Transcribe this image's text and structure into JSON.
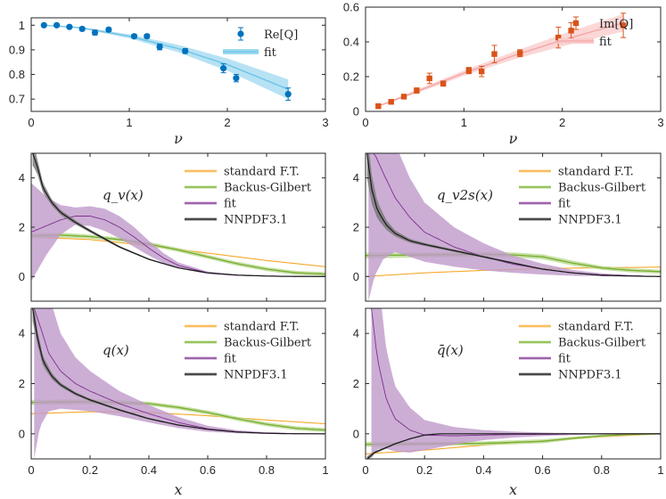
{
  "chart_data": [
    {
      "id": "re",
      "type": "scatter",
      "title": "",
      "xlabel": "ν",
      "ylabel": "",
      "xlim": [
        0,
        3
      ],
      "ylim": [
        0.65,
        1.03
      ],
      "xticks": [
        "0",
        "1",
        "2",
        "3"
      ],
      "yticks": [
        "0.7",
        "0.8",
        "0.9",
        "1"
      ],
      "legend": [
        "Re[Q]",
        "fit"
      ],
      "colors": {
        "data": "#0072BD",
        "fit": "#6CC4E8",
        "band": "#9FD8F0"
      },
      "series": [
        {
          "name": "Re[Q]",
          "x": [
            0.13,
            0.26,
            0.39,
            0.52,
            0.65,
            0.79,
            1.05,
            1.18,
            1.31,
            1.57,
            1.96,
            2.09,
            2.62
          ],
          "y": [
            1.0,
            1.0,
            0.993,
            0.985,
            0.97,
            0.982,
            0.955,
            0.955,
            0.912,
            0.895,
            0.825,
            0.785,
            0.72
          ],
          "err": [
            0.005,
            0.005,
            0.006,
            0.007,
            0.01,
            0.008,
            0.008,
            0.008,
            0.012,
            0.01,
            0.018,
            0.015,
            0.025
          ]
        },
        {
          "name": "fit",
          "x": [
            0.13,
            0.5,
            1.0,
            1.5,
            2.0,
            2.62
          ],
          "y": [
            1.0,
            0.99,
            0.955,
            0.905,
            0.84,
            0.74
          ],
          "band": [
            0.0,
            0.003,
            0.008,
            0.015,
            0.025,
            0.04
          ]
        }
      ]
    },
    {
      "id": "im",
      "type": "scatter",
      "title": "",
      "xlabel": "ν",
      "ylabel": "",
      "xlim": [
        0,
        3
      ],
      "ylim": [
        0,
        0.6
      ],
      "xticks": [
        "0",
        "1",
        "2",
        "3"
      ],
      "yticks": [
        "0",
        "0.2",
        "0.4",
        "0.6"
      ],
      "legend": [
        "Im[Q]",
        "fit"
      ],
      "colors": {
        "data": "#D95319",
        "fit": "#F4A6A6",
        "band": "#F9CACA"
      },
      "series": [
        {
          "name": "Im[Q]",
          "x": [
            0.13,
            0.26,
            0.39,
            0.52,
            0.65,
            0.79,
            1.05,
            1.18,
            1.31,
            1.57,
            1.96,
            2.09,
            2.62
          ],
          "y": [
            0.03,
            0.055,
            0.085,
            0.12,
            0.19,
            0.16,
            0.235,
            0.23,
            0.33,
            0.335,
            0.425,
            0.465,
            0.495
          ],
          "err": [
            0.008,
            0.01,
            0.012,
            0.015,
            0.03,
            0.015,
            0.018,
            0.03,
            0.05,
            0.02,
            0.06,
            0.045,
            0.07
          ]
        },
        {
          "name": "fit",
          "x": [
            0.13,
            0.5,
            1.0,
            1.5,
            2.0,
            2.62
          ],
          "y": [
            0.03,
            0.11,
            0.22,
            0.32,
            0.41,
            0.51
          ],
          "band": [
            0.004,
            0.01,
            0.015,
            0.022,
            0.035,
            0.05
          ]
        }
      ]
    },
    {
      "id": "qv",
      "type": "line",
      "title": "q_v(x)",
      "xlabel": "",
      "ylabel": "",
      "xlim": [
        0,
        1
      ],
      "ylim": [
        -1,
        5
      ],
      "xticks": [],
      "yticks": [
        "0",
        "2",
        "4"
      ],
      "legend": [
        "standard F.T.",
        "Backus-Gilbert",
        "fit",
        "NNPDF3.1"
      ],
      "series": [
        {
          "name": "standard F.T.",
          "x": [
            0,
            0.2,
            0.4,
            0.6,
            0.8,
            1
          ],
          "y": [
            1.6,
            1.5,
            1.25,
            0.95,
            0.65,
            0.4
          ],
          "band": [
            0.02,
            0.02,
            0.02,
            0.02,
            0.02,
            0.02
          ]
        },
        {
          "name": "Backus-Gilbert",
          "x": [
            0,
            0.1,
            0.2,
            0.3,
            0.4,
            0.5,
            0.6,
            0.7,
            0.8,
            0.9,
            1
          ],
          "y": [
            1.65,
            1.68,
            1.62,
            1.5,
            1.32,
            1.08,
            0.8,
            0.52,
            0.3,
            0.15,
            0.1
          ],
          "band": [
            0.1,
            0.1,
            0.08,
            0.08,
            0.08,
            0.08,
            0.08,
            0.08,
            0.08,
            0.08,
            0.08
          ]
        },
        {
          "name": "fit",
          "x": [
            0,
            0.05,
            0.1,
            0.15,
            0.2,
            0.25,
            0.3,
            0.35,
            0.4,
            0.45,
            0.5,
            0.6,
            0.7,
            0.8,
            0.9,
            1
          ],
          "y": [
            1.8,
            2.05,
            2.3,
            2.45,
            2.45,
            2.3,
            2.0,
            1.6,
            1.15,
            0.75,
            0.45,
            0.15,
            0.05,
            0.02,
            0.01,
            0.0
          ],
          "band": [
            2.0,
            1.2,
            0.6,
            0.35,
            0.4,
            0.45,
            0.45,
            0.4,
            0.3,
            0.2,
            0.12,
            0.05,
            0.02,
            0.01,
            0.01,
            0.0
          ]
        },
        {
          "name": "NNPDF3.1",
          "x": [
            0.005,
            0.02,
            0.04,
            0.07,
            0.1,
            0.15,
            0.2,
            0.3,
            0.4,
            0.5,
            0.6,
            0.7,
            0.8,
            0.9,
            1
          ],
          "y": [
            5.0,
            4.5,
            3.6,
            3.0,
            2.6,
            2.2,
            1.85,
            1.2,
            0.7,
            0.35,
            0.15,
            0.06,
            0.02,
            0.0,
            0.0
          ],
          "band": [
            0.5,
            0.3,
            0.2,
            0.12,
            0.1,
            0.08,
            0.06,
            0.04,
            0.03,
            0.02,
            0.01,
            0.01,
            0.0,
            0.0,
            0.0
          ]
        }
      ]
    },
    {
      "id": "qv2s",
      "type": "line",
      "title": "q_v2s(x)",
      "xlabel": "",
      "ylabel": "",
      "xlim": [
        0,
        1
      ],
      "ylim": [
        -1,
        5
      ],
      "xticks": [],
      "yticks": [
        "0",
        "2",
        "4"
      ],
      "legend": [
        "standard F.T.",
        "Backus-Gilbert",
        "fit",
        "NNPDF3.1"
      ],
      "series": [
        {
          "name": "standard F.T.",
          "x": [
            0,
            0.2,
            0.4,
            0.6,
            0.8,
            1
          ],
          "y": [
            0.0,
            0.15,
            0.25,
            0.32,
            0.36,
            0.38
          ],
          "band": [
            0.02,
            0.02,
            0.02,
            0.02,
            0.02,
            0.02
          ]
        },
        {
          "name": "Backus-Gilbert",
          "x": [
            0,
            0.2,
            0.4,
            0.5,
            0.6,
            0.7,
            0.8,
            0.9,
            1
          ],
          "y": [
            0.85,
            0.88,
            0.9,
            0.88,
            0.8,
            0.55,
            0.35,
            0.25,
            0.2
          ],
          "band": [
            0.12,
            0.1,
            0.1,
            0.1,
            0.1,
            0.1,
            0.08,
            0.08,
            0.08
          ]
        },
        {
          "name": "fit",
          "x": [
            0.01,
            0.03,
            0.06,
            0.1,
            0.15,
            0.2,
            0.3,
            0.4,
            0.5,
            0.6,
            0.7,
            0.8,
            0.9,
            1
          ],
          "y": [
            5.0,
            5.0,
            4.2,
            3.2,
            2.4,
            1.8,
            1.2,
            0.8,
            0.5,
            0.3,
            0.15,
            0.07,
            0.03,
            0.0
          ],
          "band": [
            6.0,
            5.0,
            3.5,
            2.2,
            1.6,
            1.2,
            0.8,
            0.55,
            0.35,
            0.22,
            0.12,
            0.06,
            0.03,
            0.0
          ]
        },
        {
          "name": "NNPDF3.1",
          "x": [
            0.005,
            0.02,
            0.04,
            0.07,
            0.1,
            0.15,
            0.2,
            0.3,
            0.4,
            0.5,
            0.6,
            0.7,
            0.8,
            0.9,
            1
          ],
          "y": [
            5.0,
            3.6,
            2.7,
            2.1,
            1.75,
            1.45,
            1.3,
            1.05,
            0.8,
            0.55,
            0.3,
            0.15,
            0.05,
            0.02,
            0.0
          ],
          "band": [
            1.0,
            0.6,
            0.35,
            0.2,
            0.12,
            0.08,
            0.06,
            0.05,
            0.04,
            0.03,
            0.02,
            0.01,
            0.0,
            0.0,
            0.0
          ]
        }
      ]
    },
    {
      "id": "q",
      "type": "line",
      "title": "q(x)",
      "xlabel": "x",
      "ylabel": "",
      "xlim": [
        0,
        1
      ],
      "ylim": [
        -1,
        5
      ],
      "xticks": [
        "0",
        "0.2",
        "0.4",
        "0.6",
        "0.8",
        "1"
      ],
      "yticks": [
        "0",
        "2",
        "4"
      ],
      "legend": [
        "standard F.T.",
        "Backus-Gilbert",
        "fit",
        "NNPDF3.1"
      ],
      "series": [
        {
          "name": "standard F.T.",
          "x": [
            0,
            0.2,
            0.4,
            0.6,
            0.8,
            1
          ],
          "y": [
            0.8,
            0.88,
            0.85,
            0.72,
            0.55,
            0.4
          ],
          "band": [
            0.02,
            0.02,
            0.02,
            0.02,
            0.02,
            0.02
          ]
        },
        {
          "name": "Backus-Gilbert",
          "x": [
            0,
            0.2,
            0.4,
            0.5,
            0.6,
            0.7,
            0.8,
            0.9,
            1
          ],
          "y": [
            1.25,
            1.28,
            1.2,
            1.05,
            0.85,
            0.6,
            0.38,
            0.22,
            0.15
          ],
          "band": [
            0.1,
            0.1,
            0.08,
            0.08,
            0.08,
            0.08,
            0.08,
            0.08,
            0.08
          ]
        },
        {
          "name": "fit",
          "x": [
            0.01,
            0.03,
            0.06,
            0.1,
            0.15,
            0.2,
            0.3,
            0.4,
            0.5,
            0.6,
            0.7,
            0.8,
            0.9,
            1
          ],
          "y": [
            5.0,
            4.3,
            3.2,
            2.5,
            2.0,
            1.7,
            1.2,
            0.8,
            0.45,
            0.2,
            0.08,
            0.03,
            0.01,
            0.0
          ],
          "band": [
            6.0,
            4.0,
            2.3,
            1.5,
            1.05,
            0.8,
            0.5,
            0.35,
            0.22,
            0.12,
            0.06,
            0.03,
            0.01,
            0.0
          ]
        },
        {
          "name": "NNPDF3.1",
          "x": [
            0.005,
            0.02,
            0.04,
            0.07,
            0.1,
            0.15,
            0.2,
            0.3,
            0.4,
            0.5,
            0.6,
            0.7,
            0.8,
            0.9,
            1
          ],
          "y": [
            5.0,
            3.9,
            2.9,
            2.3,
            1.95,
            1.6,
            1.35,
            0.95,
            0.6,
            0.35,
            0.18,
            0.07,
            0.02,
            0.0,
            0.0
          ],
          "band": [
            0.5,
            0.3,
            0.2,
            0.12,
            0.08,
            0.06,
            0.05,
            0.04,
            0.03,
            0.02,
            0.01,
            0.01,
            0.0,
            0.0,
            0.0
          ]
        }
      ]
    },
    {
      "id": "qbar",
      "type": "line",
      "title": "q̄(x)",
      "xlabel": "x",
      "ylabel": "",
      "xlim": [
        0,
        1
      ],
      "ylim": [
        -1,
        5
      ],
      "xticks": [
        "0",
        "0.2",
        "0.4",
        "0.6",
        "0.8",
        "1"
      ],
      "yticks": [
        "0",
        "2",
        "4"
      ],
      "legend": [
        "standard F.T.",
        "Backus-Gilbert",
        "fit",
        "NNPDF3.1"
      ],
      "series": [
        {
          "name": "standard F.T.",
          "x": [
            0,
            0.2,
            0.4,
            0.6,
            0.8,
            1
          ],
          "y": [
            -0.8,
            -0.65,
            -0.45,
            -0.28,
            -0.12,
            0.0
          ],
          "band": [
            0.02,
            0.02,
            0.02,
            0.02,
            0.02,
            0.02
          ]
        },
        {
          "name": "Backus-Gilbert",
          "x": [
            0,
            0.2,
            0.4,
            0.6,
            0.7,
            0.8,
            0.9,
            1
          ],
          "y": [
            -0.42,
            -0.4,
            -0.38,
            -0.3,
            -0.18,
            -0.08,
            -0.02,
            0.0
          ],
          "band": [
            0.1,
            0.08,
            0.08,
            0.08,
            0.06,
            0.05,
            0.04,
            0.03
          ]
        },
        {
          "name": "fit",
          "x": [
            0.02,
            0.04,
            0.07,
            0.1,
            0.15,
            0.2,
            0.3,
            0.4,
            0.5,
            0.6,
            0.7,
            0.8,
            0.9,
            1
          ],
          "y": [
            5.0,
            3.0,
            1.4,
            0.6,
            0.15,
            -0.05,
            -0.08,
            -0.05,
            -0.03,
            -0.02,
            -0.01,
            0.0,
            0.0,
            0.0
          ],
          "band": [
            6.0,
            3.6,
            2.0,
            1.3,
            0.9,
            0.6,
            0.35,
            0.2,
            0.12,
            0.07,
            0.04,
            0.02,
            0.01,
            0.0
          ]
        },
        {
          "name": "NNPDF3.1",
          "x": [
            0.005,
            0.03,
            0.06,
            0.1,
            0.15,
            0.2,
            0.25,
            0.3,
            0.4,
            0.6,
            0.8,
            1
          ],
          "y": [
            -1.0,
            -0.75,
            -0.6,
            -0.4,
            -0.2,
            -0.05,
            0.0,
            0.0,
            0.0,
            0.0,
            0.0,
            0.0
          ],
          "band": [
            0.1,
            0.05,
            0.04,
            0.03,
            0.02,
            0.02,
            0.01,
            0.0,
            0.0,
            0.0,
            0.0,
            0.0
          ]
        }
      ]
    }
  ]
}
